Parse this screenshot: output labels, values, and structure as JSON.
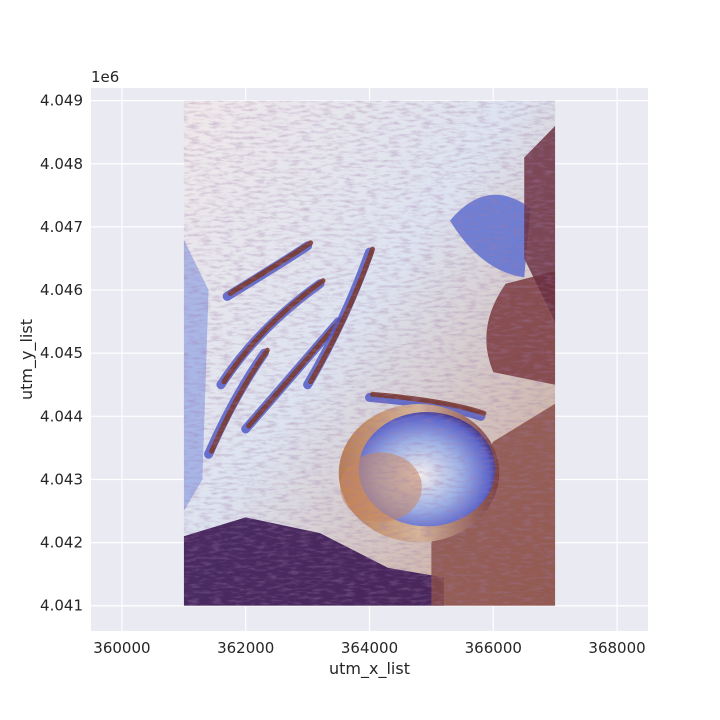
{
  "chart_data": {
    "type": "scatter",
    "title": "",
    "xlabel": "utm_x_list",
    "ylabel": "utm_y_list",
    "y_offset_label": "1e6",
    "xlim": [
      359500,
      368500
    ],
    "ylim": [
      4040600,
      4049200
    ],
    "x_ticks": [
      360000,
      362000,
      364000,
      366000,
      368000
    ],
    "x_tick_labels": [
      "360000",
      "362000",
      "364000",
      "366000",
      "368000"
    ],
    "y_ticks": [
      4041000,
      4042000,
      4043000,
      4044000,
      4045000,
      4046000,
      4047000,
      4048000,
      4049000
    ],
    "y_tick_labels": [
      "4.041",
      "4.042",
      "4.043",
      "4.044",
      "4.045",
      "4.046",
      "4.047",
      "4.048",
      "4.049"
    ],
    "grid": true,
    "background": "#eaeaf2",
    "colormap": "twilight_shifted",
    "data_extent": {
      "x": [
        361000,
        367000
      ],
      "y": [
        4041000,
        4049000
      ]
    },
    "features": {
      "crater_center": [
        364800,
        4043100
      ],
      "crater_radius": [
        1200,
        1000
      ]
    }
  }
}
